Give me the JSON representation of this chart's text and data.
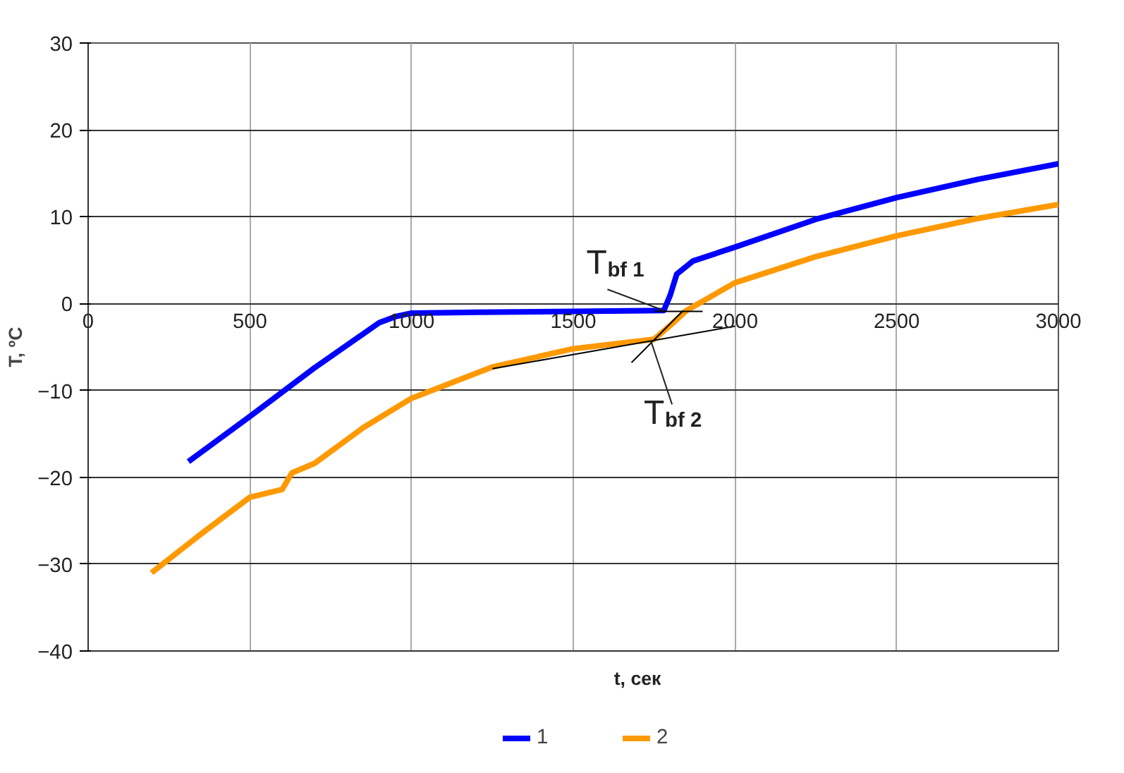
{
  "chart_data": {
    "type": "line",
    "xlabel": "t, сек",
    "ylabel": "T, ºC",
    "xlim": [
      0,
      3000
    ],
    "xticks": [
      0,
      500,
      1000,
      1500,
      2000,
      2500,
      3000
    ],
    "ylim": [
      -40,
      30
    ],
    "yticks": [
      -40,
      -30,
      -20,
      -10,
      0,
      10,
      20,
      30
    ],
    "grid": true,
    "legend": "bottom",
    "series": [
      {
        "name": "1",
        "color": "#0000ff",
        "x": [
          310,
          500,
          700,
          900,
          950,
          1000,
          1200,
          1500,
          1780,
          1800,
          1820,
          1870,
          2000,
          2250,
          2500,
          2750,
          3000
        ],
        "values": [
          -18.2,
          -13.0,
          -7.4,
          -2.2,
          -1.5,
          -1.1,
          -1.0,
          -0.9,
          -0.8,
          1.0,
          3.4,
          4.9,
          6.5,
          9.7,
          12.2,
          14.3,
          16.1
        ]
      },
      {
        "name": "2",
        "color": "#ff9900",
        "x": [
          196,
          350,
          500,
          600,
          630,
          700,
          850,
          1000,
          1250,
          1500,
          1750,
          1800,
          1850,
          2000,
          2250,
          2500,
          2750,
          3000
        ],
        "values": [
          -31.0,
          -26.5,
          -22.3,
          -21.4,
          -19.5,
          -18.4,
          -14.3,
          -10.9,
          -7.3,
          -5.2,
          -4.1,
          -2.5,
          -0.8,
          2.4,
          5.4,
          7.8,
          9.8,
          11.4
        ]
      },
      {
        "type": "line",
        "color": "#000000",
        "x": [
          1250,
          2000
        ],
        "values": [
          -7.5,
          -2.6
        ]
      },
      {
        "type": "line",
        "color": "#000000",
        "x": [
          1750,
          1900
        ],
        "values": [
          -0.9,
          -0.9
        ]
      },
      {
        "type": "line",
        "color": "#000000",
        "x": [
          1680,
          1840
        ],
        "values": [
          -6.8,
          -0.8
        ]
      }
    ],
    "annotations": [
      {
        "text": "T$_{bf 1}$",
        "x": 1780,
        "y": -0.8
      },
      {
        "text": "T$_{bf 2}$",
        "x": 1740,
        "y": -4.3
      }
    ]
  }
}
